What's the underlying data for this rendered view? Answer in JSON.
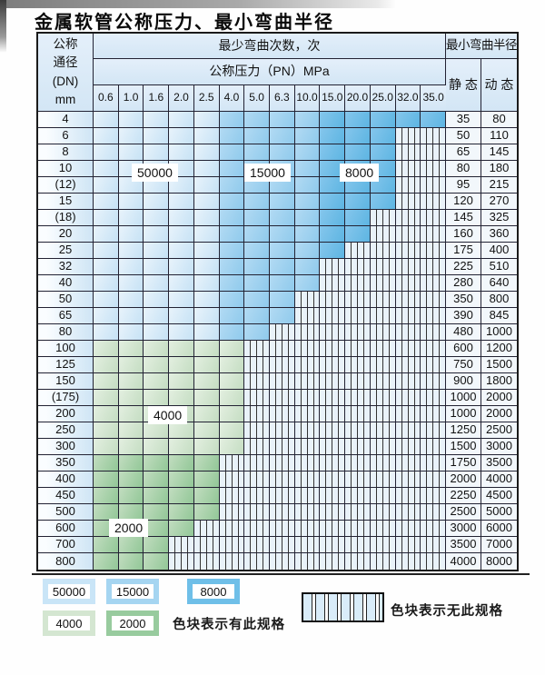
{
  "page": {
    "title": "金属软管公称压力、最小弯曲半径"
  },
  "table": {
    "header": {
      "dn_lines": [
        "公称",
        "通径",
        "(DN)",
        "mm"
      ],
      "cycles": "最少弯曲次数，次",
      "pressure": "公称压力（PN）MPa",
      "radius": "最小弯曲半径",
      "static": "静 态",
      "dynamic": "动 态",
      "pressure_values": [
        "0.6",
        "1.0",
        "1.6",
        "2.0",
        "2.5",
        "4.0",
        "5.0",
        "6.3",
        "10.0",
        "15.0",
        "20.0",
        "25.0",
        "32.0",
        "35.0"
      ]
    },
    "bands_note": "blue rows: cols 0.6-2.5 = 50000, cols 4.0-10.0 = 15000, cols 15.0-35.0 = 8000; light green rows = 4000; mid green rows = 2000; hatched = spec not available",
    "rows": [
      {
        "dn": "4",
        "scheme": "blue",
        "colored_until": 13,
        "static": "35",
        "dynamic": "80"
      },
      {
        "dn": "6",
        "scheme": "blue",
        "colored_until": 11,
        "static": "50",
        "dynamic": "110"
      },
      {
        "dn": "8",
        "scheme": "blue",
        "colored_until": 11,
        "static": "65",
        "dynamic": "145"
      },
      {
        "dn": "10",
        "scheme": "blue",
        "colored_until": 11,
        "static": "80",
        "dynamic": "180"
      },
      {
        "dn": "(12)",
        "scheme": "blue",
        "colored_until": 11,
        "static": "95",
        "dynamic": "215"
      },
      {
        "dn": "15",
        "scheme": "blue",
        "colored_until": 11,
        "static": "120",
        "dynamic": "270"
      },
      {
        "dn": "(18)",
        "scheme": "blue",
        "colored_until": 10,
        "static": "145",
        "dynamic": "325"
      },
      {
        "dn": "20",
        "scheme": "blue",
        "colored_until": 10,
        "static": "160",
        "dynamic": "360"
      },
      {
        "dn": "25",
        "scheme": "blue",
        "colored_until": 9,
        "static": "175",
        "dynamic": "400"
      },
      {
        "dn": "32",
        "scheme": "blue",
        "colored_until": 8,
        "static": "225",
        "dynamic": "510"
      },
      {
        "dn": "40",
        "scheme": "blue",
        "colored_until": 8,
        "static": "280",
        "dynamic": "640"
      },
      {
        "dn": "50",
        "scheme": "blue",
        "colored_until": 7,
        "static": "350",
        "dynamic": "800"
      },
      {
        "dn": "65",
        "scheme": "blue",
        "colored_until": 7,
        "static": "390",
        "dynamic": "845"
      },
      {
        "dn": "80",
        "scheme": "blue",
        "colored_until": 6,
        "static": "480",
        "dynamic": "1000"
      },
      {
        "dn": "100",
        "scheme": "green_light",
        "colored_until": 5,
        "static": "600",
        "dynamic": "1200"
      },
      {
        "dn": "125",
        "scheme": "green_light",
        "colored_until": 5,
        "static": "750",
        "dynamic": "1500"
      },
      {
        "dn": "150",
        "scheme": "green_light",
        "colored_until": 5,
        "static": "900",
        "dynamic": "1800"
      },
      {
        "dn": "(175)",
        "scheme": "green_light",
        "colored_until": 5,
        "static": "1000",
        "dynamic": "2000"
      },
      {
        "dn": "200",
        "scheme": "green_light",
        "colored_until": 5,
        "static": "1000",
        "dynamic": "2000"
      },
      {
        "dn": "250",
        "scheme": "green_light",
        "colored_until": 5,
        "static": "1250",
        "dynamic": "2500"
      },
      {
        "dn": "300",
        "scheme": "green_light",
        "colored_until": 5,
        "static": "1500",
        "dynamic": "3000"
      },
      {
        "dn": "350",
        "scheme": "green_mid",
        "colored_until": 4,
        "static": "1750",
        "dynamic": "3500"
      },
      {
        "dn": "400",
        "scheme": "green_mid",
        "colored_until": 4,
        "static": "2000",
        "dynamic": "4000"
      },
      {
        "dn": "450",
        "scheme": "green_mid",
        "colored_until": 4,
        "static": "2250",
        "dynamic": "4500"
      },
      {
        "dn": "500",
        "scheme": "green_mid",
        "colored_until": 4,
        "static": "2500",
        "dynamic": "5000"
      },
      {
        "dn": "600",
        "scheme": "green_mid",
        "colored_until": 3,
        "static": "3000",
        "dynamic": "6000"
      },
      {
        "dn": "700",
        "scheme": "green_mid",
        "colored_until": 2,
        "static": "3500",
        "dynamic": "7000"
      },
      {
        "dn": "800",
        "scheme": "green_mid",
        "colored_until": 2,
        "static": "4000",
        "dynamic": "8000"
      }
    ],
    "overlays": [
      {
        "label": "50000"
      },
      {
        "label": "15000"
      },
      {
        "label": "8000"
      },
      {
        "label": "4000"
      },
      {
        "label": "2000"
      }
    ]
  },
  "legend": {
    "swatches": [
      {
        "label": "50000",
        "color": "#c9e5f7"
      },
      {
        "label": "15000",
        "color": "#a5d5f1"
      },
      {
        "label": "8000",
        "color": "#6fbfe8"
      },
      {
        "label": "4000",
        "color": "#d4e6d1"
      },
      {
        "label": "2000",
        "color": "#98cb9e"
      }
    ],
    "available_text": "色块表示有此规格",
    "unavailable_text": "色块表示无此规格"
  },
  "colors": {
    "cycles_50000": "#cde6f7",
    "cycles_15000": "#9fd2ef",
    "cycles_8000": "#70c0e8",
    "cycles_4000": "#d3e6d0",
    "cycles_2000": "#a3d2a8",
    "hatch_background": "#e9f2f9",
    "grid_line": "#222233",
    "header_background": "#d8e9f6"
  }
}
